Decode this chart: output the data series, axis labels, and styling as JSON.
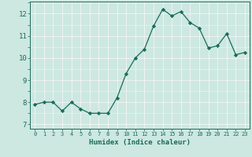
{
  "x": [
    0,
    1,
    2,
    3,
    4,
    5,
    6,
    7,
    8,
    9,
    10,
    11,
    12,
    13,
    14,
    15,
    16,
    17,
    18,
    19,
    20,
    21,
    22,
    23
  ],
  "y": [
    7.9,
    8.0,
    8.0,
    7.6,
    8.0,
    7.7,
    7.5,
    7.5,
    7.5,
    8.2,
    9.3,
    10.0,
    10.4,
    11.45,
    12.2,
    11.9,
    12.1,
    11.6,
    11.35,
    10.45,
    10.55,
    11.1,
    10.15,
    10.25
  ],
  "xlabel": "Humidex (Indice chaleur)",
  "xlim": [
    -0.5,
    23.5
  ],
  "ylim": [
    6.8,
    12.55
  ],
  "yticks": [
    7,
    8,
    9,
    10,
    11,
    12
  ],
  "xticks": [
    0,
    1,
    2,
    3,
    4,
    5,
    6,
    7,
    8,
    9,
    10,
    11,
    12,
    13,
    14,
    15,
    16,
    17,
    18,
    19,
    20,
    21,
    22,
    23
  ],
  "line_color": "#1a6b5a",
  "marker": "D",
  "marker_size": 2.2,
  "bg_color": "#cce8e0",
  "grid_color": "#f5f5f5",
  "tick_color": "#1a6b5a",
  "label_color": "#1a6b5a"
}
